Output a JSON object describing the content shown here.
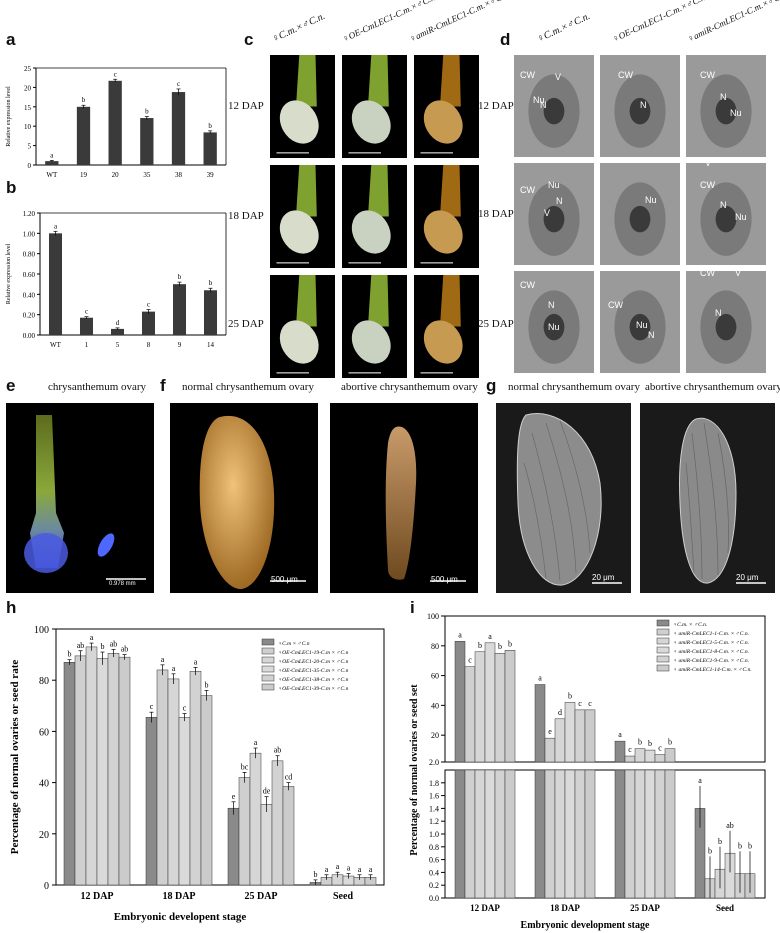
{
  "panel_letters": {
    "a": "a",
    "b": "b",
    "c": "c",
    "d": "d",
    "e": "e",
    "f": "f",
    "g": "g",
    "h": "h",
    "i": "i"
  },
  "panel_c": {
    "col_headers": [
      "♀C.m.×♂C.n.",
      "♀OE-CmLEC1-C.m.×♂C.n.",
      "♀amiR-CmLEC1-C.m.×♂C.n."
    ],
    "row_labels": [
      "12 DAP",
      "18 DAP",
      "25 DAP"
    ]
  },
  "panel_d": {
    "col_headers": [
      "♀C.m.×♂C.n.",
      "♀OE-CmLEC1-C.m.×♂C.n.",
      "♀amiR-CmLEC1-C.m.×♂C.n."
    ],
    "row_labels": [
      "12 DAP",
      "18 DAP",
      "25 DAP"
    ],
    "cell_labels": [
      "CW",
      "V",
      "Nu",
      "N"
    ]
  },
  "panel_e": {
    "title": "chrysanthemum ovary",
    "scale": "0.978 mm"
  },
  "panel_f": {
    "left_title": "normal chrysanthemum ovary",
    "right_title": "abortive chrysanthemum ovary",
    "scale_left": "500 μm",
    "scale_right": "500 μm"
  },
  "panel_g": {
    "left_title": "normal chrysanthemum ovary",
    "right_title": "abortive chrysanthemum ovary",
    "scale_left": "20 μm",
    "scale_right": "20 μm"
  },
  "chart_data": [
    {
      "id": "a",
      "type": "bar",
      "ylabel": "Relative expression level",
      "ylim": [
        0,
        25
      ],
      "yticks": [
        "0",
        "5",
        "10",
        "15",
        "20",
        "25"
      ],
      "categories": [
        "WT",
        "19",
        "20",
        "35",
        "38",
        "39"
      ],
      "values": [
        1.0,
        15.0,
        21.7,
        12.1,
        18.8,
        8.4
      ],
      "errors": [
        0.2,
        0.4,
        0.4,
        0.4,
        0.8,
        0.4
      ],
      "letters": [
        "a",
        "b",
        "c",
        "b",
        "c",
        "b"
      ]
    },
    {
      "id": "b",
      "type": "bar",
      "ylabel": "Relative expression level",
      "ylim": [
        0,
        1.2
      ],
      "yticks": [
        "0.00",
        "0.20",
        "0.40",
        "0.60",
        "0.80",
        "1.00",
        "1.20"
      ],
      "categories": [
        "WT",
        "1",
        "5",
        "8",
        "9",
        "14"
      ],
      "values": [
        1.0,
        0.17,
        0.06,
        0.23,
        0.5,
        0.44
      ],
      "errors": [
        0.02,
        0.01,
        0.01,
        0.02,
        0.02,
        0.02
      ],
      "letters": [
        "a",
        "c",
        "d",
        "c",
        "b",
        "b"
      ]
    },
    {
      "id": "h",
      "type": "bar",
      "xlabel": "Embryonic developent stage",
      "ylabel": "Percentage of normal ovaries or seed rate",
      "ylim": [
        0,
        100
      ],
      "yticks": [
        "0",
        "20",
        "40",
        "60",
        "80",
        "100"
      ],
      "categories": [
        "12 DAP",
        "18 DAP",
        "25 DAP",
        "Seed"
      ],
      "series": [
        {
          "name": "♀C.m × ♂C.n",
          "values": [
            87,
            65.5,
            30,
            1
          ]
        },
        {
          "name": "♀OE-CmLEC1-19-C.m × ♂C.n",
          "values": [
            89.5,
            84,
            42,
            3
          ]
        },
        {
          "name": "♀OE-CmLEC1-20-C.m × ♂C.n",
          "values": [
            93,
            80.5,
            51.5,
            4
          ]
        },
        {
          "name": "♀OE-CmLEC1-35-C.m × ♂C.n",
          "values": [
            88.5,
            65.5,
            31.5,
            3.5
          ]
        },
        {
          "name": "♀OE-CmLEC1-38-C.m × ♂C.n",
          "values": [
            90.5,
            83.5,
            48.5,
            3
          ]
        },
        {
          "name": "♀OE-CmLEC1-39-C.m × ♂C.n",
          "values": [
            89,
            74,
            38.5,
            3
          ]
        }
      ],
      "errors": [
        [
          1,
          2,
          2.5,
          1
        ],
        [
          2,
          2,
          2,
          1
        ],
        [
          1.5,
          2,
          2,
          1
        ],
        [
          2.5,
          1.5,
          3,
          1
        ],
        [
          1.5,
          1.5,
          2,
          1
        ],
        [
          1,
          2,
          1.5,
          1
        ]
      ],
      "letters": [
        [
          "b",
          "ab",
          "a",
          "b",
          "ab",
          "ab"
        ],
        [
          "c",
          "a",
          "a",
          "c",
          "a",
          "b"
        ],
        [
          "e",
          "bc",
          "a",
          "de",
          "ab",
          "cd"
        ],
        [
          "b",
          "a",
          "a",
          "a",
          "a",
          "a"
        ]
      ]
    },
    {
      "id": "i",
      "type": "bar",
      "xlabel": "Embryonic development stage",
      "ylabel": "Percentage of normal ovaries or seed set",
      "upper_ylim": [
        2,
        100
      ],
      "upper_yticks": [
        "2.0",
        "20",
        "40",
        "60",
        "80",
        "100"
      ],
      "lower_ylim": [
        0,
        2.0
      ],
      "lower_yticks": [
        "0.0",
        "0.2",
        "0.4",
        "0.6",
        "0.8",
        "1.0",
        "1.2",
        "1.4",
        "1.6",
        "1.8"
      ],
      "categories": [
        "12 DAP",
        "18 DAP",
        "25 DAP",
        "Seed"
      ],
      "series": [
        {
          "name": "♀C.m. × ♂C.n.",
          "values": [
            83,
            54,
            16,
            1.4
          ]
        },
        {
          "name": "♀ amiR-CmLEC1-1-C.m. × ♂C.n.",
          "values": [
            66,
            18,
            6,
            0.3
          ]
        },
        {
          "name": "♀ amiR-CmLEC1-5-C.m. × ♂C.n.",
          "values": [
            76,
            31,
            11,
            0.45
          ]
        },
        {
          "name": "♀ amiR-CmLEC1-8-C.m. × ♂C.n.",
          "values": [
            82,
            42,
            10,
            0.7
          ]
        },
        {
          "name": "♀ amiR-CmLEC1-9-C.m. × ♂C.n.",
          "values": [
            75,
            37,
            7,
            0.38
          ]
        },
        {
          "name": "♀ amiR-CmLEC1-14-C.m. × ♂C.n.",
          "values": [
            77,
            37,
            11,
            0.38
          ]
        }
      ],
      "letters": [
        [
          "a",
          "c",
          "b",
          "a",
          "b",
          "b"
        ],
        [
          "a",
          "e",
          "d",
          "b",
          "c",
          "c"
        ],
        [
          "a",
          "c",
          "b",
          "b",
          "c",
          "b"
        ],
        [
          "a",
          "b",
          "b",
          "ab",
          "b",
          "b"
        ]
      ]
    }
  ],
  "colors": {
    "dark_bar": "#3a3a3a",
    "light_bar": "#cfcfcf",
    "mid_bar": "#8a8a8a"
  }
}
